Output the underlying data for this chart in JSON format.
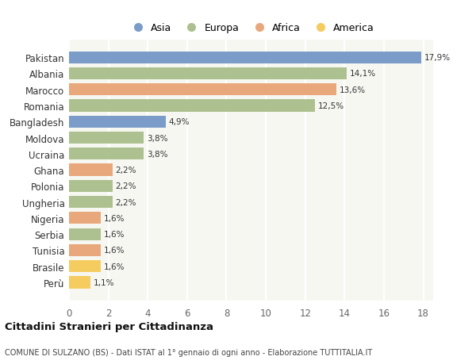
{
  "countries": [
    "Pakistan",
    "Albania",
    "Marocco",
    "Romania",
    "Bangladesh",
    "Moldova",
    "Ucraina",
    "Ghana",
    "Polonia",
    "Ungheria",
    "Nigeria",
    "Serbia",
    "Tunisia",
    "Brasile",
    "Perù"
  ],
  "values": [
    17.9,
    14.1,
    13.6,
    12.5,
    4.9,
    3.8,
    3.8,
    2.2,
    2.2,
    2.2,
    1.6,
    1.6,
    1.6,
    1.6,
    1.1
  ],
  "labels": [
    "17,9%",
    "14,1%",
    "13,6%",
    "12,5%",
    "4,9%",
    "3,8%",
    "3,8%",
    "2,2%",
    "2,2%",
    "2,2%",
    "1,6%",
    "1,6%",
    "1,6%",
    "1,6%",
    "1,1%"
  ],
  "bar_colors": [
    "#7b9cc8",
    "#adc08f",
    "#e8a87c",
    "#adc08f",
    "#7b9cc8",
    "#adc08f",
    "#adc08f",
    "#e8a87c",
    "#adc08f",
    "#adc08f",
    "#e8a87c",
    "#adc08f",
    "#e8a87c",
    "#f5cc60",
    "#f5cc60"
  ],
  "xlim": [
    0,
    18.5
  ],
  "xticks": [
    0,
    2,
    4,
    6,
    8,
    10,
    12,
    14,
    16,
    18
  ],
  "title": "Cittadini Stranieri per Cittadinanza",
  "subtitle": "COMUNE DI SULZANO (BS) - Dati ISTAT al 1° gennaio di ogni anno - Elaborazione TUTTITALIA.IT",
  "bg_color": "#ffffff",
  "plot_bg_color": "#f7f7f2",
  "grid_color": "#ffffff",
  "legend_labels": [
    "Asia",
    "Europa",
    "Africa",
    "America"
  ],
  "legend_colors": [
    "#7b9cc8",
    "#adc08f",
    "#e8a87c",
    "#f5cc60"
  ]
}
